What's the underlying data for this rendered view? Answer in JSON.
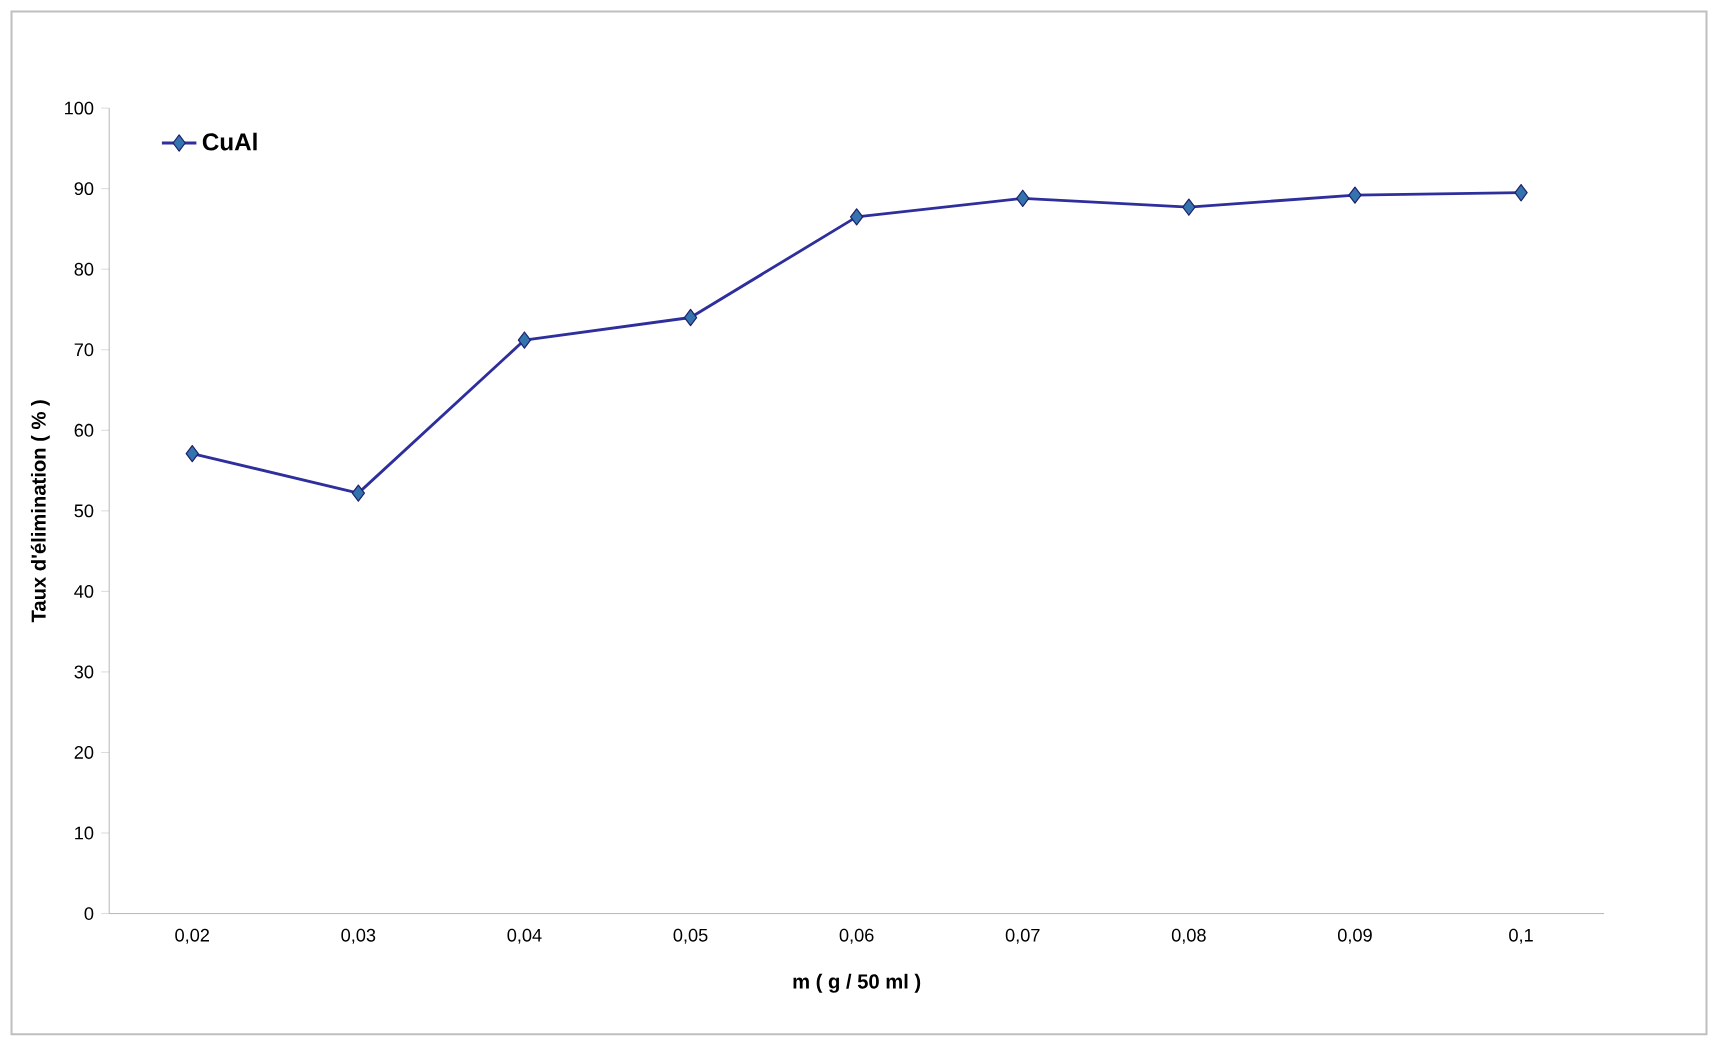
{
  "chart_data": {
    "type": "line",
    "xlabel": "m ( g / 50 ml )",
    "ylabel": "Taux d'élimination ( % )",
    "categories": [
      "0,02",
      "0,03",
      "0,04",
      "0,05",
      "0,06",
      "0,07",
      "0,08",
      "0,09",
      "0,1"
    ],
    "series": [
      {
        "name": "CuAl",
        "color": "#2e2f9c",
        "values": [
          57.1,
          52.2,
          71.2,
          74.0,
          86.5,
          88.8,
          87.7,
          89.2,
          89.5
        ]
      }
    ],
    "ylim": [
      0,
      100
    ],
    "yticks": [
      0,
      10,
      20,
      30,
      40,
      50,
      60,
      70,
      80,
      90,
      100
    ],
    "legend": "top left",
    "marker": "diamond",
    "line_style": "solid",
    "grid": false
  }
}
